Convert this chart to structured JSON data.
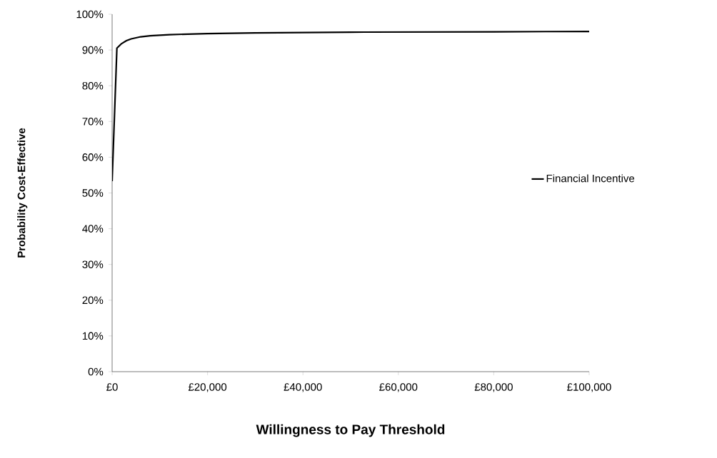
{
  "chart_data": {
    "type": "line",
    "xlabel": "Willingness to Pay Threshold",
    "ylabel": "Probability Cost-Effective",
    "series": [
      {
        "name": "Financial Incentive",
        "color": "#000000",
        "x": [
          0,
          1000,
          2000,
          3000,
          4000,
          6000,
          8000,
          12000,
          20000,
          30000,
          50000,
          80000,
          100000
        ],
        "values": [
          53.3,
          90.5,
          91.8,
          92.6,
          93.1,
          93.7,
          94.0,
          94.3,
          94.6,
          94.8,
          95.0,
          95.1,
          95.2
        ]
      }
    ],
    "xlim": [
      0,
      100000
    ],
    "ylim": [
      0,
      100
    ],
    "xticks": [
      {
        "value": 0,
        "label": "£0"
      },
      {
        "value": 20000,
        "label": "£20,000"
      },
      {
        "value": 40000,
        "label": "£40,000"
      },
      {
        "value": 60000,
        "label": "£60,000"
      },
      {
        "value": 80000,
        "label": "£80,000"
      },
      {
        "value": 100000,
        "label": "£100,000"
      }
    ],
    "yticks": [
      {
        "value": 0,
        "label": "0%"
      },
      {
        "value": 10,
        "label": "10%"
      },
      {
        "value": 20,
        "label": "20%"
      },
      {
        "value": 30,
        "label": "30%"
      },
      {
        "value": 40,
        "label": "40%"
      },
      {
        "value": 50,
        "label": "50%"
      },
      {
        "value": 60,
        "label": "60%"
      },
      {
        "value": 70,
        "label": "70%"
      },
      {
        "value": 80,
        "label": "80%"
      },
      {
        "value": 90,
        "label": "90%"
      },
      {
        "value": 100,
        "label": "100%"
      }
    ],
    "legend": "right",
    "marker": "none",
    "line_style": "solid",
    "grid": false
  }
}
